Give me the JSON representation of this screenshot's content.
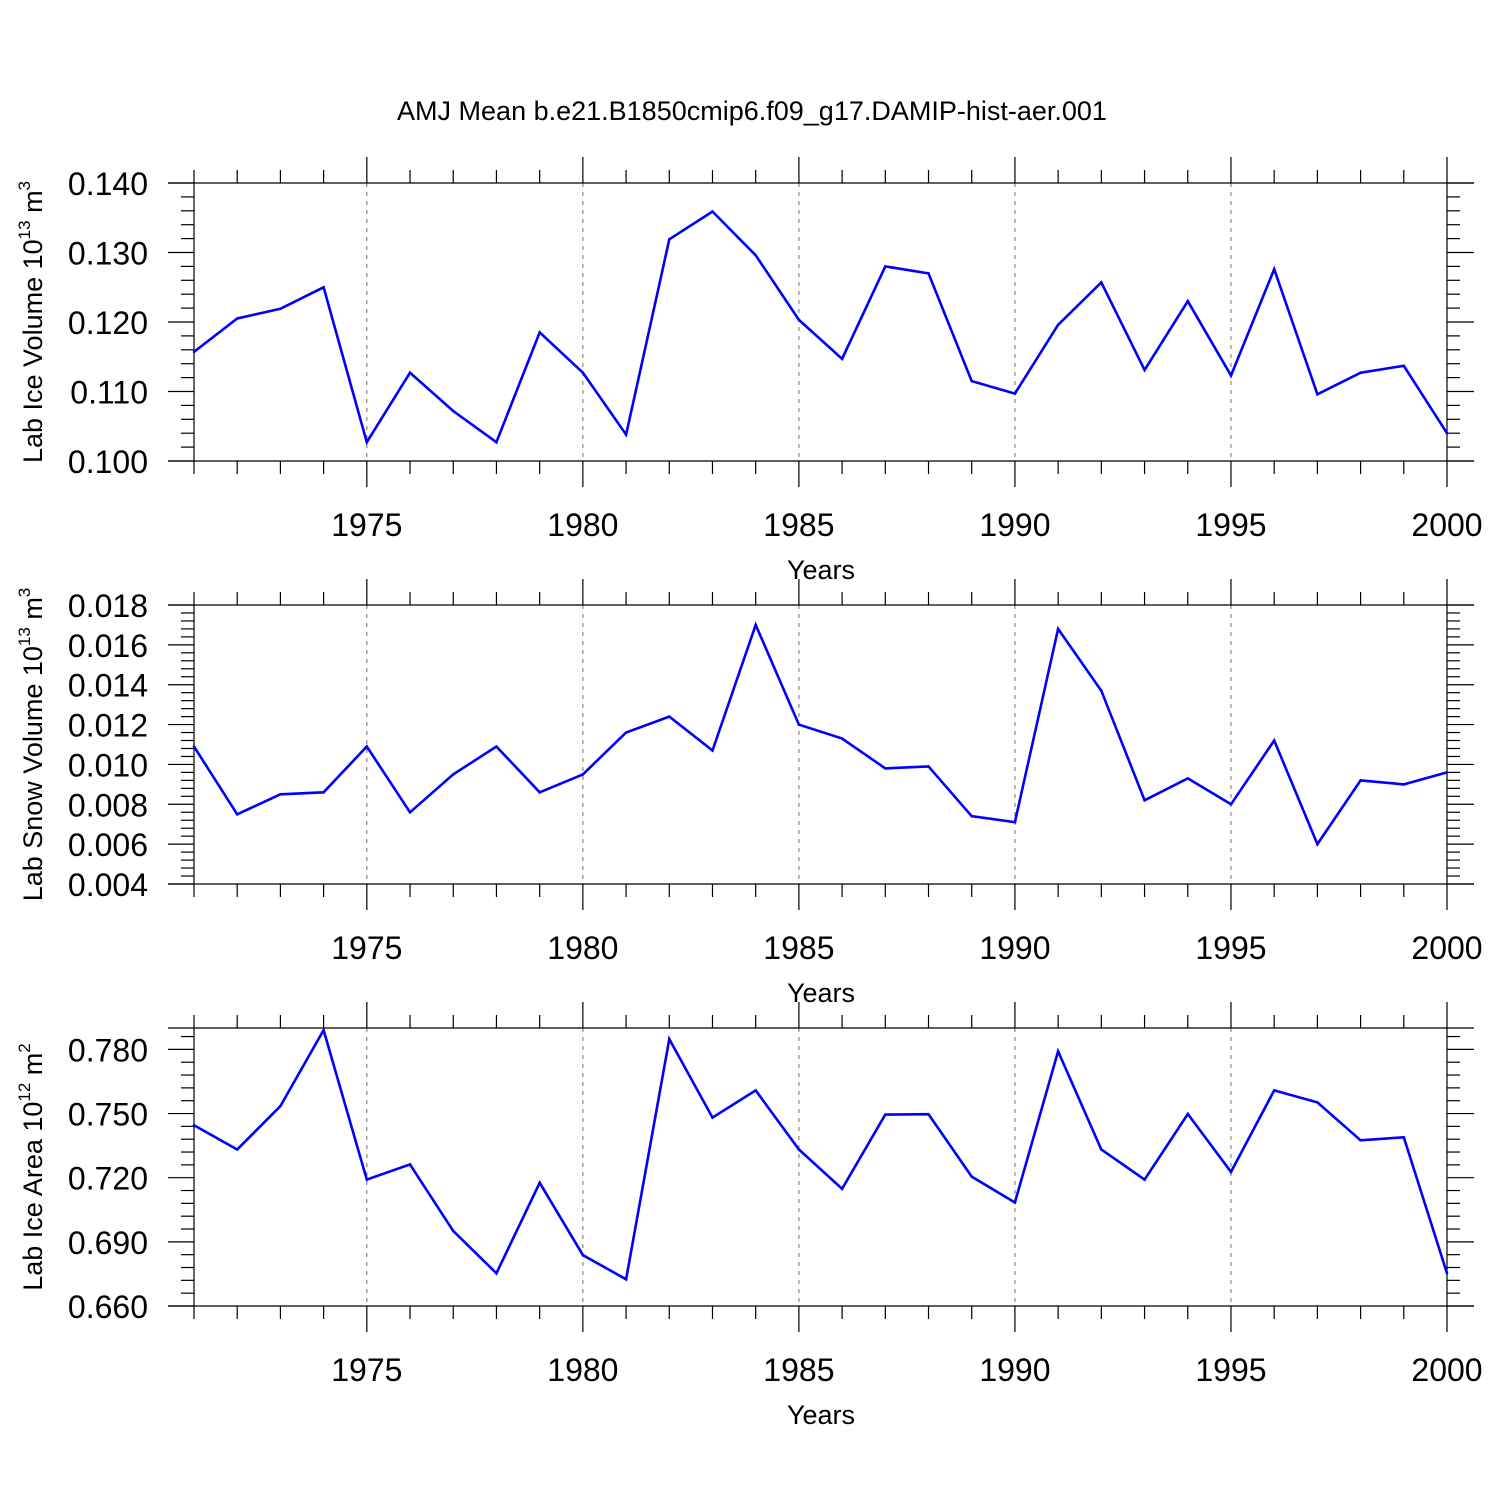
{
  "title": "AMJ Mean b.e21.B1850cmip6.f09_g17.DAMIP-hist-aer.001",
  "chart_data": [
    {
      "type": "line",
      "xlabel": "Years",
      "ylabel": "Lab Ice Volume 10",
      "ylabel_exp": "13",
      "ylabel_unit": " m",
      "ylabel_unit_exp": "3",
      "xlim": [
        1971,
        2000
      ],
      "ylim": [
        0.1,
        0.14
      ],
      "x_ticks": [
        1975,
        1980,
        1985,
        1990,
        1995,
        2000
      ],
      "x_tick_labels": [
        "1975",
        "1980",
        "1985",
        "1990",
        "1995",
        "2000"
      ],
      "y_ticks": [
        0.1,
        0.11,
        0.12,
        0.13,
        0.14
      ],
      "y_tick_labels": [
        "0.100",
        "0.110",
        "0.120",
        "0.130",
        "0.140"
      ],
      "y_minor_step": 0.002,
      "grid": "x-major-dashed",
      "color": "#0000ff",
      "x": [
        1971,
        1972,
        1973,
        1974,
        1975,
        1976,
        1977,
        1978,
        1979,
        1980,
        1981,
        1982,
        1983,
        1984,
        1985,
        1986,
        1987,
        1988,
        1989,
        1990,
        1991,
        1992,
        1993,
        1994,
        1995,
        1996,
        1997,
        1998,
        1999,
        2000
      ],
      "values": [
        0.1157,
        0.1205,
        0.1219,
        0.125,
        0.1027,
        0.1127,
        0.1072,
        0.1027,
        0.1185,
        0.1127,
        0.1038,
        0.1319,
        0.1359,
        0.1296,
        0.1203,
        0.1147,
        0.128,
        0.127,
        0.1115,
        0.1097,
        0.1196,
        0.1257,
        0.1131,
        0.123,
        0.1123,
        0.1276,
        0.1096,
        0.1127,
        0.1137,
        0.104
      ]
    },
    {
      "type": "line",
      "xlabel": "Years",
      "ylabel": "Lab Snow Volume 10",
      "ylabel_exp": "13",
      "ylabel_unit": " m",
      "ylabel_unit_exp": "3",
      "xlim": [
        1971,
        2000
      ],
      "ylim": [
        0.004,
        0.018
      ],
      "x_ticks": [
        1975,
        1980,
        1985,
        1990,
        1995,
        2000
      ],
      "x_tick_labels": [
        "1975",
        "1980",
        "1985",
        "1990",
        "1995",
        "2000"
      ],
      "y_ticks": [
        0.004,
        0.006,
        0.008,
        0.01,
        0.012,
        0.014,
        0.016,
        0.018
      ],
      "y_tick_labels": [
        "0.004",
        "0.006",
        "0.008",
        "0.010",
        "0.012",
        "0.014",
        "0.016",
        "0.018"
      ],
      "y_minor_step": 0.0004,
      "grid": "x-major-dashed",
      "color": "#0000ff",
      "x": [
        1971,
        1972,
        1973,
        1974,
        1975,
        1976,
        1977,
        1978,
        1979,
        1980,
        1981,
        1982,
        1983,
        1984,
        1985,
        1986,
        1987,
        1988,
        1989,
        1990,
        1991,
        1992,
        1993,
        1994,
        1995,
        1996,
        1997,
        1998,
        1999,
        2000
      ],
      "values": [
        0.0109,
        0.0075,
        0.0085,
        0.0086,
        0.0109,
        0.0076,
        0.0095,
        0.0109,
        0.0086,
        0.0095,
        0.0116,
        0.0124,
        0.0107,
        0.017,
        0.012,
        0.0113,
        0.0098,
        0.0099,
        0.0074,
        0.0071,
        0.0168,
        0.0137,
        0.0082,
        0.0093,
        0.008,
        0.0112,
        0.006,
        0.0092,
        0.009,
        0.0096
      ]
    },
    {
      "type": "line",
      "xlabel": "Years",
      "ylabel": "Lab Ice Area 10",
      "ylabel_exp": "12",
      "ylabel_unit": " m",
      "ylabel_unit_exp": "2",
      "xlim": [
        1971,
        2000
      ],
      "ylim": [
        0.66,
        0.79
      ],
      "x_ticks": [
        1975,
        1980,
        1985,
        1990,
        1995,
        2000
      ],
      "x_tick_labels": [
        "1975",
        "1980",
        "1985",
        "1990",
        "1995",
        "2000"
      ],
      "y_ticks": [
        0.66,
        0.69,
        0.72,
        0.75,
        0.78
      ],
      "y_tick_labels": [
        "0.660",
        "0.690",
        "0.720",
        "0.750",
        "0.780"
      ],
      "y_minor_step": 0.006,
      "grid": "x-major-dashed",
      "color": "#0000ff",
      "x": [
        1971,
        1972,
        1973,
        1974,
        1975,
        1976,
        1977,
        1978,
        1979,
        1980,
        1981,
        1982,
        1983,
        1984,
        1985,
        1986,
        1987,
        1988,
        1989,
        1990,
        1991,
        1992,
        1993,
        1994,
        1995,
        1996,
        1997,
        1998,
        1999,
        2000
      ],
      "values": [
        0.7445,
        0.7332,
        0.7535,
        0.789,
        0.7191,
        0.7262,
        0.6951,
        0.6753,
        0.7176,
        0.6838,
        0.6725,
        0.7848,
        0.7481,
        0.7608,
        0.7332,
        0.7148,
        0.7495,
        0.7497,
        0.7205,
        0.7084,
        0.7791,
        0.7332,
        0.7191,
        0.7498,
        0.7227,
        0.7608,
        0.7552,
        0.7375,
        0.7389,
        0.6753
      ]
    }
  ]
}
